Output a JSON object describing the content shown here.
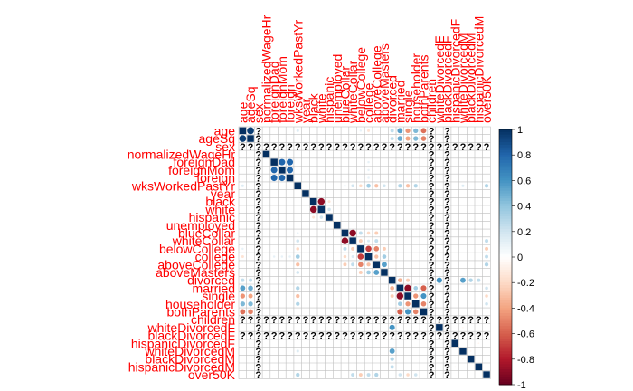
{
  "chart_data": {
    "type": "heatmap",
    "title": "",
    "variables": [
      "age",
      "ageSq",
      "sex",
      "normalizedWageHr",
      "foreignDad",
      "foreignMom",
      "foreign",
      "wksWorkedPastYr",
      "year",
      "black",
      "white",
      "hispanic",
      "unemployed",
      "blueCollar",
      "whiteCollar",
      "belowCollege",
      "college",
      "aboveCollege",
      "aboveMasters",
      "divorced",
      "married",
      "single",
      "householder",
      "bothParents",
      "children",
      "whiteDivorcedF",
      "blackDivorcedF",
      "hispanicDivorcedF",
      "whiteDivorcedM",
      "blackDivorcedM",
      "hispanicDivorcedM",
      "over50K"
    ],
    "na_symbol": "?",
    "na_rows": [
      2,
      24,
      26
    ],
    "na_cols": [
      2,
      24,
      26
    ],
    "lower": "top-left to bottom-right diagonal",
    "correlations": [
      [
        0,
        1,
        0.95
      ],
      [
        0,
        20,
        0.55
      ],
      [
        0,
        21,
        -0.45
      ],
      [
        0,
        22,
        0.45
      ],
      [
        0,
        23,
        -0.55
      ],
      [
        0,
        19,
        0.25
      ],
      [
        0,
        7,
        0.15
      ],
      [
        0,
        16,
        -0.15
      ],
      [
        0,
        15,
        0.1
      ],
      [
        1,
        20,
        0.5
      ],
      [
        1,
        21,
        -0.4
      ],
      [
        1,
        22,
        0.45
      ],
      [
        1,
        23,
        -0.5
      ],
      [
        1,
        19,
        0.25
      ],
      [
        4,
        5,
        0.8
      ],
      [
        4,
        6,
        0.8
      ],
      [
        5,
        6,
        0.8
      ],
      [
        4,
        16,
        0.1
      ],
      [
        5,
        16,
        0.1
      ],
      [
        6,
        16,
        0.1
      ],
      [
        7,
        15,
        -0.2
      ],
      [
        7,
        16,
        0.35
      ],
      [
        7,
        17,
        -0.3
      ],
      [
        7,
        18,
        0.2
      ],
      [
        7,
        13,
        0.1
      ],
      [
        7,
        14,
        0.2
      ],
      [
        7,
        20,
        0.3
      ],
      [
        7,
        21,
        -0.3
      ],
      [
        7,
        22,
        0.3
      ],
      [
        7,
        31,
        0.3
      ],
      [
        7,
        28,
        0.15
      ],
      [
        9,
        10,
        -0.9
      ],
      [
        9,
        11,
        -0.15
      ],
      [
        10,
        11,
        0.2
      ],
      [
        13,
        14,
        -0.9
      ],
      [
        13,
        15,
        0.25
      ],
      [
        13,
        16,
        -0.2
      ],
      [
        13,
        17,
        -0.25
      ],
      [
        14,
        15,
        -0.25
      ],
      [
        14,
        16,
        0.15
      ],
      [
        14,
        17,
        0.25
      ],
      [
        14,
        31,
        0.25
      ],
      [
        15,
        16,
        -0.7
      ],
      [
        15,
        17,
        -0.5
      ],
      [
        15,
        18,
        -0.25
      ],
      [
        16,
        17,
        -0.3
      ],
      [
        16,
        18,
        0.35
      ],
      [
        17,
        18,
        0.55
      ],
      [
        15,
        31,
        -0.25
      ],
      [
        16,
        31,
        0.25
      ],
      [
        17,
        31,
        0.3
      ],
      [
        19,
        20,
        -0.35
      ],
      [
        19,
        21,
        -0.25
      ],
      [
        19,
        25,
        0.6
      ],
      [
        19,
        28,
        0.55
      ],
      [
        19,
        29,
        0.3
      ],
      [
        19,
        30,
        0.25
      ],
      [
        20,
        21,
        -0.9
      ],
      [
        20,
        22,
        0.35
      ],
      [
        20,
        23,
        -0.6
      ],
      [
        20,
        31,
        0.2
      ],
      [
        21,
        22,
        -0.45
      ],
      [
        21,
        23,
        0.6
      ],
      [
        21,
        31,
        -0.2
      ],
      [
        22,
        23,
        -0.5
      ],
      [
        22,
        31,
        0.2
      ],
      [
        25,
        28,
        -0.05
      ],
      [
        27,
        30,
        -0.05
      ],
      [
        28,
        29,
        -0.05
      ]
    ],
    "colorbar": {
      "ticks": [
        "1",
        "0.8",
        "0.6",
        "0.4",
        "0.2",
        "0",
        "-0.2",
        "-0.4",
        "-0.6",
        "-0.8",
        "-1"
      ],
      "range": [
        -1,
        1
      ]
    },
    "colors": {
      "positive": "#053061",
      "neutral": "#ffffff",
      "negative": "#67001f",
      "label": "#ff0000",
      "grid": "#bfbfbf"
    }
  }
}
